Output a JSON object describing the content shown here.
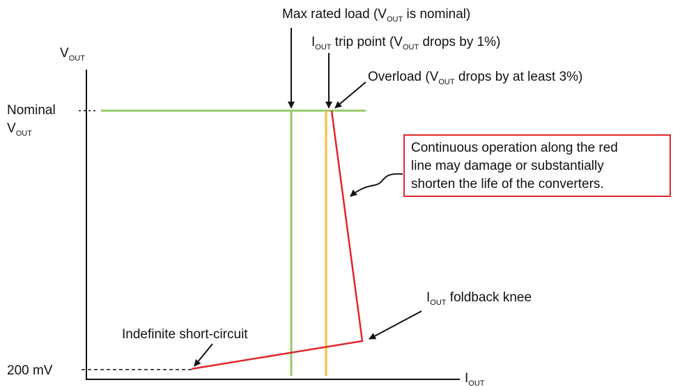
{
  "axes": {
    "y_label": [
      "V",
      "OUT"
    ],
    "x_label": [
      "I",
      "OUT"
    ],
    "nominal_label": [
      "Nominal",
      "V",
      "OUT"
    ],
    "low_label": "200 mV"
  },
  "annotations": {
    "max_rated_load": [
      "Max rated load (V",
      "OUT",
      " is nominal)"
    ],
    "trip_point": [
      "I",
      "OUT",
      " trip point (V",
      "OUT",
      " drops by 1%)"
    ],
    "overload": [
      "Overload (V",
      "OUT",
      " drops by at least 3%)"
    ],
    "callout": [
      "Continuous operation along the red",
      "line may damage or substantially",
      "shorten the life of the converters."
    ],
    "foldback_knee": [
      "I",
      "OUT",
      " foldback knee"
    ],
    "short_circuit": "Indefinite short-circuit"
  }
}
